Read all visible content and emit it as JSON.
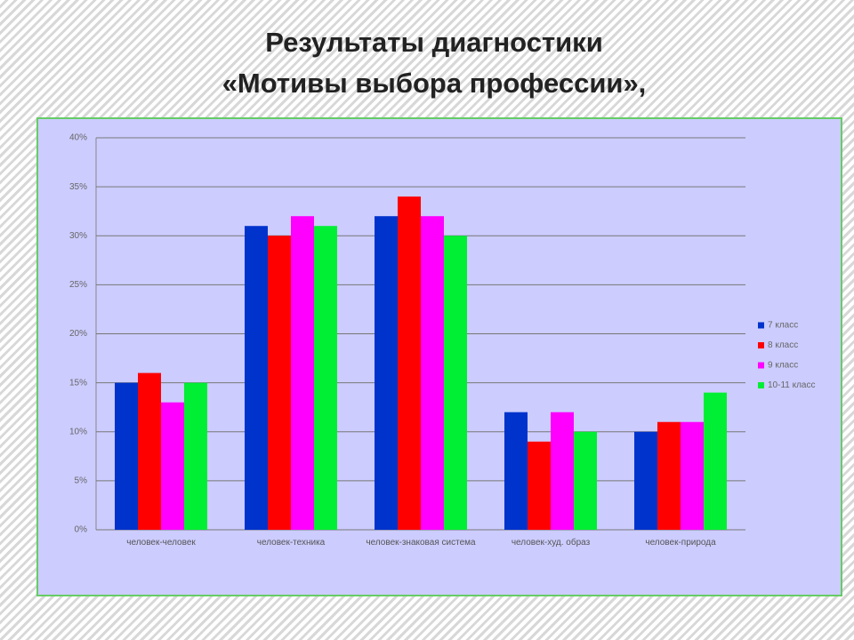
{
  "chart_data": {
    "type": "bar",
    "title": "Результаты диагностики",
    "subtitle": "«Мотивы выбора профессии»,",
    "categories": [
      "человек-человек",
      "человек-техника",
      "человек-знаковая система",
      "человек-худ. образ",
      "человек-природа"
    ],
    "series": [
      {
        "name": "7 класс",
        "color": "#0033cc",
        "values": [
          15,
          31,
          32,
          12,
          10
        ]
      },
      {
        "name": "8 класс",
        "color": "#ff0000",
        "values": [
          16,
          30,
          34,
          9,
          11
        ]
      },
      {
        "name": "9 класс",
        "color": "#ff00ff",
        "values": [
          13,
          32,
          32,
          12,
          11
        ]
      },
      {
        "name": "10-11 класс",
        "color": "#00ee33",
        "values": [
          15,
          31,
          30,
          10,
          14
        ]
      }
    ],
    "ylim": [
      0,
      40
    ],
    "yticks": [
      {
        "value": 0,
        "label": "0%"
      },
      {
        "value": 5,
        "label": "5%"
      },
      {
        "value": 10,
        "label": "10%"
      },
      {
        "value": 15,
        "label": "15%"
      },
      {
        "value": 20,
        "label": "20%"
      },
      {
        "value": 25,
        "label": "25%"
      },
      {
        "value": 30,
        "label": "30%"
      },
      {
        "value": 35,
        "label": "35%"
      },
      {
        "value": 40,
        "label": "40%"
      }
    ],
    "grid": true,
    "legend": "right"
  }
}
